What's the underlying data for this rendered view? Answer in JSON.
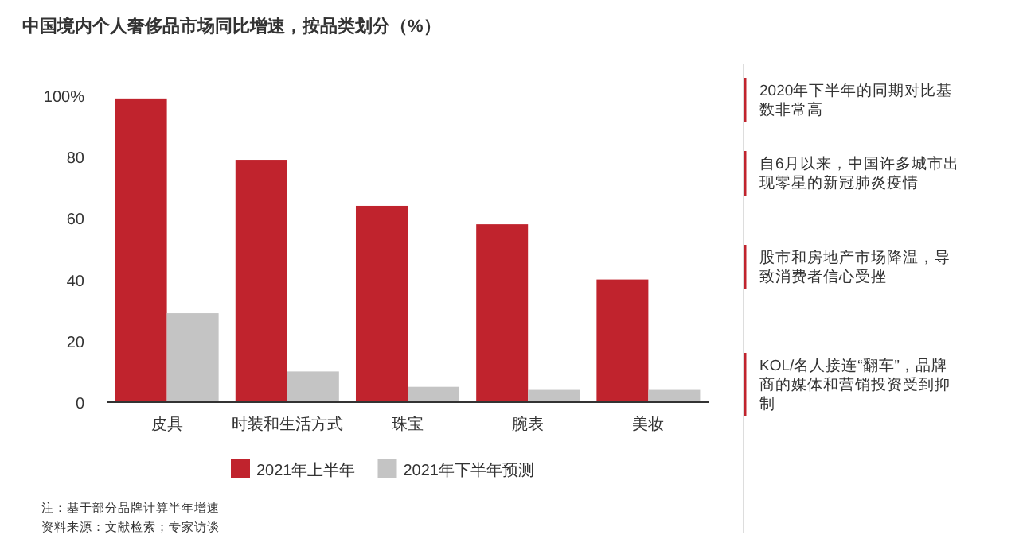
{
  "chart_data": {
    "type": "bar",
    "title": "中国境内个人奢侈品市场同比增速，按品类划分（%）",
    "categories": [
      "皮具",
      "时装和生活方式",
      "珠宝",
      "腕表",
      "美妆"
    ],
    "series": [
      {
        "name": "2021年上半年",
        "color": "#c0232d",
        "values": [
          99,
          79,
          64,
          58,
          40
        ]
      },
      {
        "name": "2021年下半年预测",
        "color": "#c4c4c4",
        "values": [
          29,
          10,
          5,
          4,
          4
        ]
      }
    ],
    "ylim": [
      0,
      100
    ],
    "yticks": [
      0,
      20,
      40,
      60,
      {
        "value": 80,
        "label": "80"
      },
      {
        "value": 100,
        "label": "100%"
      }
    ],
    "grid": false,
    "legend": "bottom",
    "annotations": [
      "2020年下半年的同期对比基数非常高",
      "自6月以来，中国许多城市出现零星的新冠肺炎疫情",
      "股市和房地产市场降温，导致消费者信心受挫",
      "KOL/名人接连“翻车”，品牌商的媒体和营销投资受到抑制",
      "注：基于部分品牌计算半年增速",
      "资料来源：文献检索；专家访谈"
    ]
  }
}
